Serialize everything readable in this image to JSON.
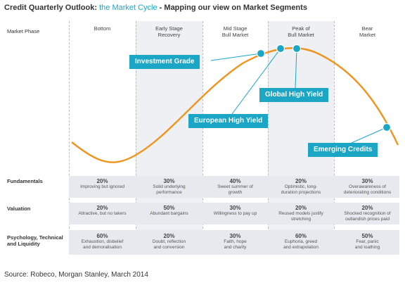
{
  "header": {
    "title_prefix": "Credit Quarterly Outlook:",
    "title_accent": "the Market Cycle",
    "title_suffix": " - Mapping our view on Market Segments"
  },
  "market_phase_label": "Market Phase",
  "phases": [
    {
      "line1": "Bottom",
      "line2": ""
    },
    {
      "line1": "Early Stage",
      "line2": "Recovery"
    },
    {
      "line1": "Mid Stage",
      "line2": "Bull Market"
    },
    {
      "line1": "Peak of",
      "line2": "Bull Market"
    },
    {
      "line1": "Bear",
      "line2": "Market"
    }
  ],
  "callouts": {
    "investment_grade": "Investment Grade",
    "global_high_yield": "Global High Yield",
    "european_high_yield": "European High Yield",
    "emerging_credits": "Emerging Credits"
  },
  "rows": [
    {
      "label_line1": "Fundamentals",
      "label_line2": "",
      "label_line3": "",
      "cells": [
        {
          "pct": "20%",
          "line1": "Improving but ignored",
          "line2": ""
        },
        {
          "pct": "30%",
          "line1": "Solid underlying",
          "line2": "performance"
        },
        {
          "pct": "40%",
          "line1": "Sweet summer of",
          "line2": "growth"
        },
        {
          "pct": "20%",
          "line1": "Optimistic, long-",
          "line2": "duration projections"
        },
        {
          "pct": "30%",
          "line1": "Overawareness of",
          "line2": "deteriorating conditions"
        }
      ]
    },
    {
      "label_line1": "Valuation",
      "label_line2": "",
      "label_line3": "",
      "cells": [
        {
          "pct": "20%",
          "line1": "Attractive, but no takers",
          "line2": ""
        },
        {
          "pct": "50%",
          "line1": "Abundant bargains",
          "line2": ""
        },
        {
          "pct": "30%",
          "line1": "Willingness to pay up",
          "line2": ""
        },
        {
          "pct": "20%",
          "line1": "Reused models justify",
          "line2": "stretching"
        },
        {
          "pct": "20%",
          "line1": "Shocked recognition of",
          "line2": "outlandish prices paid"
        }
      ]
    },
    {
      "label_line1": "Psychology, Technical",
      "label_line2": "and Liquidity",
      "label_line3": "",
      "cells": [
        {
          "pct": "60%",
          "line1": "Exhaustion, disbelief",
          "line2": "and demoralisation"
        },
        {
          "pct": "20%",
          "line1": "Doubt, reflection",
          "line2": "and conversion"
        },
        {
          "pct": "30%",
          "line1": "Faith, hope",
          "line2": "and charity"
        },
        {
          "pct": "60%",
          "line1": "Euphoria, greed",
          "line2": "and extrapolation"
        },
        {
          "pct": "50%",
          "line1": "Fear, panic",
          "line2": "and loathing"
        }
      ]
    }
  ],
  "source": "Source: Robeco, Morgan Stanley, March 2014",
  "colors": {
    "accent": "#1aa6c4",
    "curve": "#f0941e",
    "band": "#e6eaef"
  }
}
